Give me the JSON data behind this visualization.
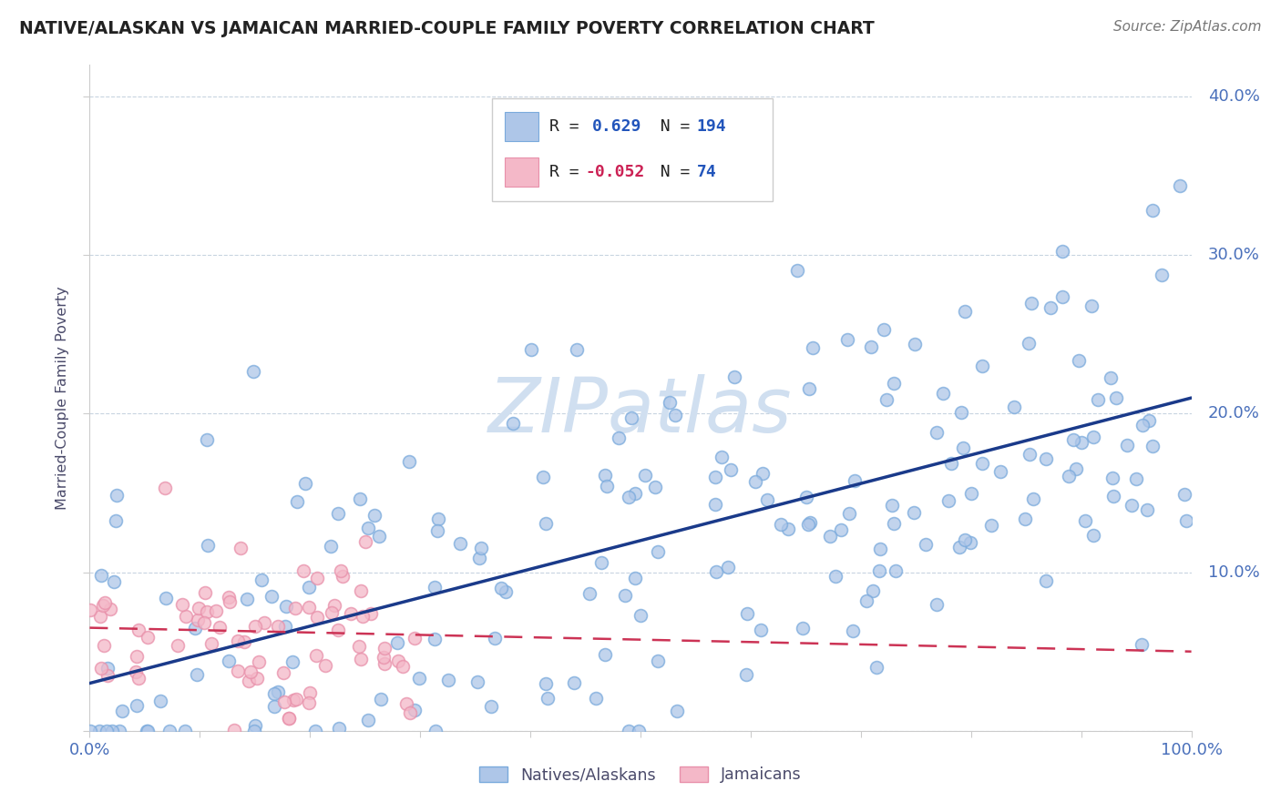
{
  "title": "NATIVE/ALASKAN VS JAMAICAN MARRIED-COUPLE FAMILY POVERTY CORRELATION CHART",
  "source_text": "Source: ZipAtlas.com",
  "ylabel": "Married-Couple Family Poverty",
  "xlim": [
    0,
    100
  ],
  "ylim": [
    0,
    42
  ],
  "blue_R": 0.629,
  "blue_N": 194,
  "pink_R": -0.052,
  "pink_N": 74,
  "blue_color": "#aec6e8",
  "pink_color": "#f4b8c8",
  "blue_edge_color": "#7aaadc",
  "pink_edge_color": "#e890aa",
  "blue_line_color": "#1a3a8a",
  "pink_line_color": "#cc3355",
  "watermark": "ZIPatlas",
  "watermark_color": "#d0dff0",
  "background_color": "#ffffff",
  "grid_color": "#c8d4e0",
  "title_color": "#222222",
  "axis_label_color": "#4a4a6a",
  "tick_label_color": "#4a70bb",
  "legend_r_color_blue": "#2255bb",
  "legend_r_color_pink": "#cc2255",
  "legend_n_color": "#2255bb",
  "blue_line_start_y": 3.0,
  "blue_line_end_y": 21.0,
  "pink_line_start_y": 6.5,
  "pink_line_end_y": 5.0
}
